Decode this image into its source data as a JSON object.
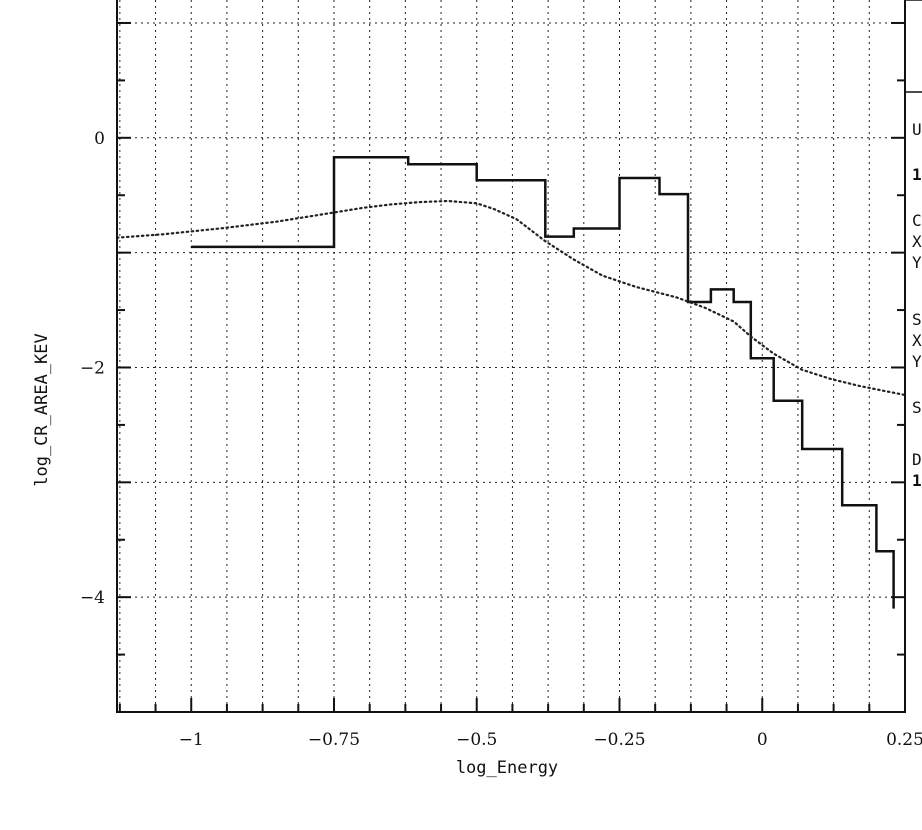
{
  "chart_data": {
    "type": "line",
    "xlabel": "log_Energy",
    "ylabel": "log_CR_AREA_KEV",
    "xlim": [
      -1.13,
      0.25
    ],
    "ylim": [
      -5.0,
      1.2
    ],
    "grid": true,
    "x_ticks": [
      -1,
      -0.75,
      -0.5,
      -0.25,
      0,
      0.25
    ],
    "x_tick_labels": [
      "−1",
      "−0.75",
      "−0.5",
      "−0.25",
      "0",
      "0.25"
    ],
    "y_ticks": [
      0,
      -2,
      -4
    ],
    "y_tick_labels": [
      "0",
      "−2",
      "−4"
    ],
    "series": [
      {
        "style": "step",
        "color": "#111111",
        "points": [
          [
            -1.0,
            -0.95
          ],
          [
            -0.75,
            -0.95
          ],
          [
            -0.75,
            -0.17
          ],
          [
            -0.62,
            -0.17
          ],
          [
            -0.62,
            -0.23
          ],
          [
            -0.5,
            -0.23
          ],
          [
            -0.5,
            -0.37
          ],
          [
            -0.38,
            -0.37
          ],
          [
            -0.38,
            -0.86
          ],
          [
            -0.33,
            -0.86
          ],
          [
            -0.33,
            -0.79
          ],
          [
            -0.25,
            -0.79
          ],
          [
            -0.25,
            -0.35
          ],
          [
            -0.18,
            -0.35
          ],
          [
            -0.18,
            -0.49
          ],
          [
            -0.13,
            -0.49
          ],
          [
            -0.13,
            -1.43
          ],
          [
            -0.09,
            -1.43
          ],
          [
            -0.09,
            -1.32
          ],
          [
            -0.05,
            -1.32
          ],
          [
            -0.05,
            -1.43
          ],
          [
            -0.02,
            -1.43
          ],
          [
            -0.02,
            -1.92
          ],
          [
            0.02,
            -1.92
          ],
          [
            0.02,
            -2.29
          ],
          [
            0.07,
            -2.29
          ],
          [
            0.07,
            -2.71
          ],
          [
            0.14,
            -2.71
          ],
          [
            0.14,
            -3.2
          ],
          [
            0.2,
            -3.2
          ],
          [
            0.2,
            -3.6
          ],
          [
            0.23,
            -3.6
          ],
          [
            0.23,
            -4.1
          ]
        ]
      },
      {
        "style": "dotted",
        "color": "#222222",
        "points": [
          [
            -1.13,
            -0.87
          ],
          [
            -1.05,
            -0.84
          ],
          [
            -0.95,
            -0.79
          ],
          [
            -0.85,
            -0.73
          ],
          [
            -0.75,
            -0.65
          ],
          [
            -0.7,
            -0.61
          ],
          [
            -0.65,
            -0.58
          ],
          [
            -0.6,
            -0.56
          ],
          [
            -0.55,
            -0.55
          ],
          [
            -0.5,
            -0.57
          ],
          [
            -0.47,
            -0.62
          ],
          [
            -0.43,
            -0.71
          ],
          [
            -0.38,
            -0.9
          ],
          [
            -0.33,
            -1.06
          ],
          [
            -0.28,
            -1.2
          ],
          [
            -0.22,
            -1.3
          ],
          [
            -0.15,
            -1.39
          ],
          [
            -0.1,
            -1.48
          ],
          [
            -0.05,
            -1.6
          ],
          [
            -0.02,
            -1.73
          ],
          [
            0.02,
            -1.88
          ],
          [
            0.07,
            -2.02
          ],
          [
            0.12,
            -2.1
          ],
          [
            0.17,
            -2.16
          ],
          [
            0.21,
            -2.2
          ],
          [
            0.25,
            -2.24
          ]
        ]
      }
    ]
  },
  "side_panel": {
    "lines": [
      "U",
      "1",
      "C",
      "X",
      "Y",
      "S",
      "X",
      "Y",
      "S",
      "D",
      "1"
    ]
  }
}
